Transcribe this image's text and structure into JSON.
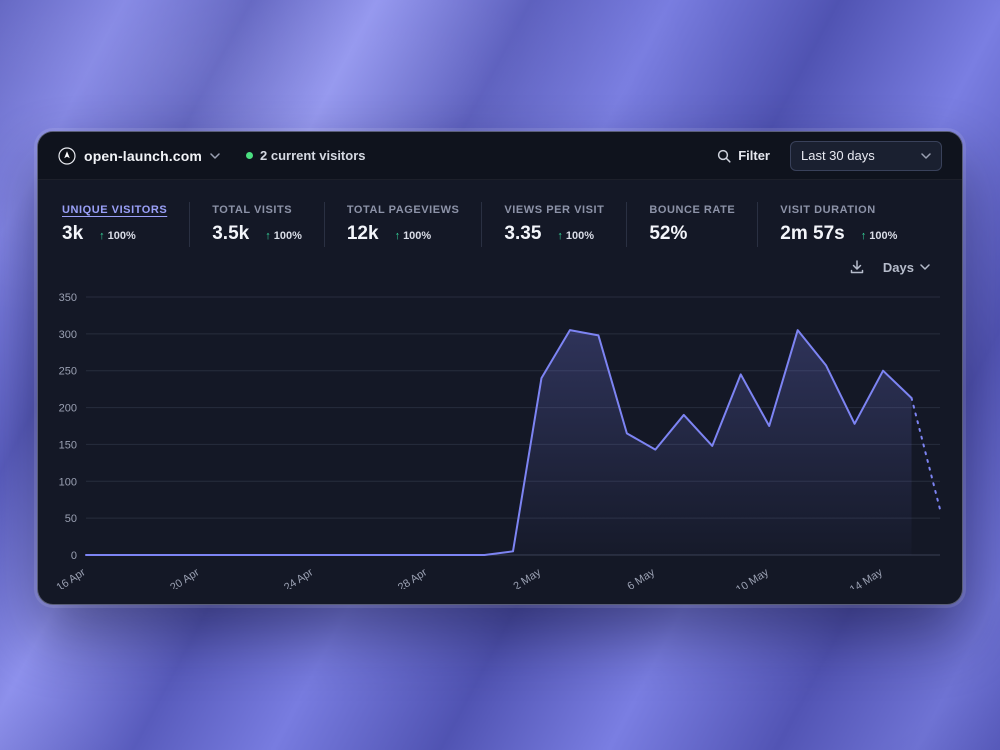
{
  "header": {
    "site_name": "open-launch.com",
    "current_visitors": "2 current visitors",
    "filter_label": "Filter",
    "date_range": "Last 30 days"
  },
  "stats": [
    {
      "label": "UNIQUE VISITORS",
      "value": "3k",
      "change": "100%",
      "active": true
    },
    {
      "label": "TOTAL VISITS",
      "value": "3.5k",
      "change": "100%",
      "active": false
    },
    {
      "label": "TOTAL PAGEVIEWS",
      "value": "12k",
      "change": "100%",
      "active": false
    },
    {
      "label": "VIEWS PER VISIT",
      "value": "3.35",
      "change": "100%",
      "active": false
    },
    {
      "label": "BOUNCE RATE",
      "value": "52%",
      "change": null,
      "active": false
    },
    {
      "label": "VISIT DURATION",
      "value": "2m 57s",
      "change": "100%",
      "active": false
    }
  ],
  "chart_controls": {
    "interval_label": "Days"
  },
  "icons": {
    "up_arrow": "↑"
  },
  "colors": {
    "accent": "#7d84f3",
    "positive": "#34d399",
    "live_dot": "#4ade80",
    "card_bg": "#141826",
    "grid": "#272d3d"
  },
  "chart_data": {
    "type": "line",
    "x": [
      "16 Apr",
      "17 Apr",
      "18 Apr",
      "19 Apr",
      "20 Apr",
      "21 Apr",
      "22 Apr",
      "23 Apr",
      "24 Apr",
      "25 Apr",
      "26 Apr",
      "27 Apr",
      "28 Apr",
      "29 Apr",
      "30 Apr",
      "1 May",
      "2 May",
      "3 May",
      "4 May",
      "5 May",
      "6 May",
      "7 May",
      "8 May",
      "9 May",
      "10 May",
      "11 May",
      "12 May",
      "13 May",
      "14 May",
      "15 May",
      "16 May"
    ],
    "values": [
      0,
      0,
      0,
      0,
      0,
      0,
      0,
      0,
      0,
      0,
      0,
      0,
      0,
      0,
      0,
      5,
      240,
      305,
      298,
      165,
      143,
      190,
      148,
      245,
      175,
      305,
      257,
      178,
      250,
      213,
      62
    ],
    "ylim": [
      0,
      350
    ],
    "yticks": [
      0,
      50,
      100,
      150,
      200,
      250,
      300,
      350
    ],
    "xtick_indices": [
      0,
      4,
      8,
      12,
      16,
      20,
      24,
      28
    ],
    "xtick_labels": [
      "16 Apr",
      "20 Apr",
      "24 Apr",
      "28 Apr",
      "2 May",
      "6 May",
      "10 May",
      "14 May"
    ],
    "dashed_from_index": 29,
    "line_color": "#7d84f3",
    "grid": true,
    "legend": "none"
  }
}
